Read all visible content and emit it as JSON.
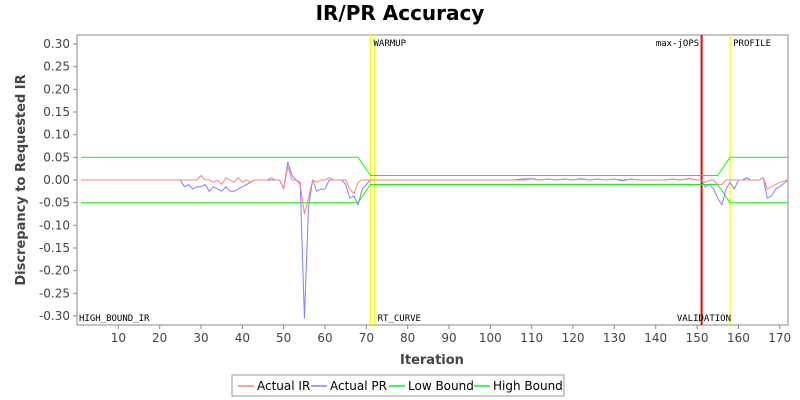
{
  "chart_data": {
    "type": "line",
    "title": "IR/PR Accuracy",
    "xlabel": "Iteration",
    "ylabel": "Discrepancy to Requested IR",
    "xlim": [
      0,
      172
    ],
    "ylim": [
      -0.32,
      0.32
    ],
    "x_ticks": [
      10,
      20,
      30,
      40,
      50,
      60,
      70,
      80,
      90,
      100,
      110,
      120,
      130,
      140,
      150,
      160,
      170
    ],
    "y_ticks": [
      0.3,
      0.25,
      0.2,
      0.15,
      0.1,
      0.05,
      0.0,
      -0.05,
      -0.1,
      -0.15,
      -0.2,
      -0.25,
      -0.3
    ],
    "grid": false,
    "legend_position": "bottom",
    "markers": [
      {
        "x": 71.0,
        "label": "WARMUP",
        "label_pos": "top",
        "color": "#ffff00"
      },
      {
        "x": 72.0,
        "label": "RT_CURVE",
        "label_pos": "bottom",
        "color": "#ffff00"
      },
      {
        "x": 151.0,
        "label": "max-jOPS",
        "label_pos": "top-left",
        "color": "#ff0000"
      },
      {
        "x": 151.2,
        "label": "VALIDATION",
        "label_pos": "bottom-left",
        "color": "#ff0000"
      },
      {
        "x": 158.0,
        "label": "PROFILE",
        "label_pos": "top",
        "color": "#ffff00"
      }
    ],
    "corner_labels": [
      {
        "label": "HIGH_BOUND_IR",
        "position": "bottom-left"
      }
    ],
    "series": [
      {
        "name": "Actual IR",
        "color": "#ff8080",
        "points": [
          [
            1,
            0
          ],
          [
            25,
            0
          ],
          [
            26,
            0
          ],
          [
            27,
            0
          ],
          [
            28,
            0
          ],
          [
            29,
            0
          ],
          [
            30,
            0.01
          ],
          [
            31,
            0
          ],
          [
            32,
            0
          ],
          [
            33,
            -0.005
          ],
          [
            34,
            0
          ],
          [
            35,
            -0.01
          ],
          [
            36,
            0.005
          ],
          [
            37,
            0
          ],
          [
            38,
            -0.005
          ],
          [
            39,
            0.005
          ],
          [
            40,
            -0.005
          ],
          [
            41,
            0
          ],
          [
            42,
            -0.005
          ],
          [
            43,
            0
          ],
          [
            44,
            0
          ],
          [
            45,
            0
          ],
          [
            46,
            0
          ],
          [
            47,
            0.005
          ],
          [
            48,
            0
          ],
          [
            49,
            0
          ],
          [
            50,
            -0.02
          ],
          [
            51,
            0.03
          ],
          [
            52,
            0
          ],
          [
            53,
            0
          ],
          [
            54,
            -0.01
          ],
          [
            55,
            -0.075
          ],
          [
            56,
            -0.04
          ],
          [
            57,
            0
          ],
          [
            58,
            -0.005
          ],
          [
            59,
            0
          ],
          [
            60,
            0
          ],
          [
            61,
            0.005
          ],
          [
            62,
            0
          ],
          [
            63,
            0
          ],
          [
            64,
            0
          ],
          [
            65,
            0
          ],
          [
            66,
            -0.02
          ],
          [
            67,
            -0.03
          ],
          [
            68,
            -0.005
          ],
          [
            69,
            0
          ],
          [
            70,
            0
          ],
          [
            71,
            0
          ],
          [
            75,
            0
          ],
          [
            80,
            0
          ],
          [
            85,
            0
          ],
          [
            90,
            0
          ],
          [
            95,
            0
          ],
          [
            100,
            0
          ],
          [
            105,
            0
          ],
          [
            108,
            0
          ],
          [
            110,
            0.002
          ],
          [
            112,
            0
          ],
          [
            114,
            0.002
          ],
          [
            116,
            0
          ],
          [
            118,
            0.002
          ],
          [
            120,
            0
          ],
          [
            122,
            0.002
          ],
          [
            124,
            0
          ],
          [
            126,
            0.002
          ],
          [
            128,
            0
          ],
          [
            130,
            0.002
          ],
          [
            132,
            0
          ],
          [
            134,
            0.002
          ],
          [
            136,
            0
          ],
          [
            138,
            0
          ],
          [
            140,
            0
          ],
          [
            142,
            0
          ],
          [
            144,
            0.002
          ],
          [
            146,
            0
          ],
          [
            148,
            0.003
          ],
          [
            150,
            0
          ],
          [
            151,
            0
          ],
          [
            152,
            -0.005
          ],
          [
            153,
            0
          ],
          [
            154,
            0
          ],
          [
            155,
            -0.01
          ],
          [
            156,
            -0.01
          ],
          [
            157,
            0
          ],
          [
            158,
            0
          ],
          [
            159,
            0
          ],
          [
            160,
            0
          ],
          [
            161,
            0
          ],
          [
            162,
            0
          ],
          [
            163,
            0
          ],
          [
            164,
            0
          ],
          [
            165,
            0
          ],
          [
            166,
            0.005
          ],
          [
            167,
            -0.02
          ],
          [
            168,
            -0.015
          ],
          [
            169,
            -0.01
          ],
          [
            170,
            -0.005
          ],
          [
            172,
            0
          ]
        ]
      },
      {
        "name": "Actual PR",
        "color": "#8080ff",
        "points": [
          [
            1,
            0
          ],
          [
            25,
            0
          ],
          [
            26,
            -0.015
          ],
          [
            27,
            -0.01
          ],
          [
            28,
            -0.02
          ],
          [
            29,
            -0.015
          ],
          [
            30,
            -0.015
          ],
          [
            31,
            -0.01
          ],
          [
            32,
            -0.025
          ],
          [
            33,
            -0.015
          ],
          [
            34,
            -0.02
          ],
          [
            35,
            -0.025
          ],
          [
            36,
            -0.015
          ],
          [
            37,
            -0.025
          ],
          [
            38,
            -0.025
          ],
          [
            39,
            -0.02
          ],
          [
            40,
            -0.015
          ],
          [
            41,
            -0.01
          ],
          [
            42,
            -0.005
          ],
          [
            43,
            0
          ],
          [
            44,
            0
          ],
          [
            45,
            0
          ],
          [
            46,
            0
          ],
          [
            47,
            0
          ],
          [
            48,
            0
          ],
          [
            49,
            0
          ],
          [
            50,
            -0.02
          ],
          [
            51,
            0.04
          ],
          [
            52,
            0.01
          ],
          [
            53,
            0
          ],
          [
            54,
            -0.005
          ],
          [
            55,
            -0.305
          ],
          [
            56,
            -0.06
          ],
          [
            57,
            0
          ],
          [
            58,
            -0.025
          ],
          [
            59,
            -0.02
          ],
          [
            60,
            -0.02
          ],
          [
            61,
            0
          ],
          [
            62,
            0
          ],
          [
            63,
            0
          ],
          [
            64,
            0
          ],
          [
            65,
            -0.01
          ],
          [
            66,
            -0.04
          ],
          [
            67,
            -0.035
          ],
          [
            68,
            -0.055
          ],
          [
            69,
            -0.02
          ],
          [
            70,
            -0.01
          ],
          [
            71,
            0
          ],
          [
            75,
            0
          ],
          [
            80,
            0
          ],
          [
            85,
            0
          ],
          [
            90,
            0
          ],
          [
            95,
            0
          ],
          [
            100,
            0
          ],
          [
            105,
            0
          ],
          [
            108,
            0.002
          ],
          [
            110,
            0.003
          ],
          [
            112,
            0
          ],
          [
            114,
            0.002
          ],
          [
            116,
            0
          ],
          [
            118,
            0.002
          ],
          [
            120,
            0
          ],
          [
            122,
            0.003
          ],
          [
            124,
            0
          ],
          [
            126,
            0.002
          ],
          [
            128,
            0
          ],
          [
            130,
            0.002
          ],
          [
            132,
            -0.002
          ],
          [
            134,
            0.002
          ],
          [
            136,
            0
          ],
          [
            138,
            0
          ],
          [
            140,
            0
          ],
          [
            142,
            0
          ],
          [
            144,
            0.002
          ],
          [
            146,
            0
          ],
          [
            148,
            0.003
          ],
          [
            150,
            0
          ],
          [
            151,
            0
          ],
          [
            152,
            -0.015
          ],
          [
            153,
            -0.01
          ],
          [
            154,
            -0.02
          ],
          [
            155,
            -0.04
          ],
          [
            156,
            -0.055
          ],
          [
            157,
            -0.02
          ],
          [
            158,
            -0.005
          ],
          [
            159,
            -0.02
          ],
          [
            160,
            0
          ],
          [
            161,
            0
          ],
          [
            162,
            0.005
          ],
          [
            163,
            0
          ],
          [
            164,
            0
          ],
          [
            165,
            0
          ],
          [
            166,
            0.005
          ],
          [
            167,
            -0.04
          ],
          [
            168,
            -0.035
          ],
          [
            169,
            -0.02
          ],
          [
            170,
            -0.015
          ],
          [
            172,
            0
          ]
        ]
      },
      {
        "name": "Low Bound",
        "color": "#00ff00",
        "points": [
          [
            1,
            -0.05
          ],
          [
            68,
            -0.05
          ],
          [
            71,
            -0.01
          ],
          [
            152,
            -0.01
          ],
          [
            155,
            -0.01
          ],
          [
            158,
            -0.05
          ],
          [
            172,
            -0.05
          ]
        ]
      },
      {
        "name": "High Bound",
        "color": "#00ff00",
        "points": [
          [
            1,
            0.05
          ],
          [
            68,
            0.05
          ],
          [
            71,
            0.01
          ],
          [
            152,
            0.01
          ],
          [
            155,
            0.01
          ],
          [
            158,
            0.05
          ],
          [
            172,
            0.05
          ]
        ]
      }
    ]
  }
}
